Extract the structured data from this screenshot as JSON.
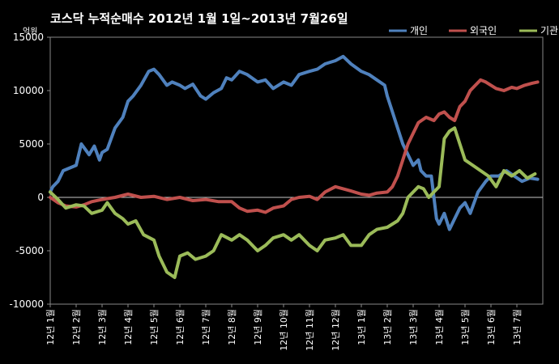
{
  "colors": {
    "background": "#000000",
    "plot_border": "#888888",
    "zero_line": "#c8c8c8"
  },
  "chart_data": {
    "type": "line",
    "title": "코스닥 누적순매수 2012년 1월 1일~2013년 7월26일",
    "unit_label": "억원",
    "ylim": [
      -10000,
      15000
    ],
    "y_ticks": [
      -10000,
      -5000,
      0,
      5000,
      10000,
      15000
    ],
    "y_tick_labels": [
      "-10000",
      "-5000",
      "0",
      "5000",
      "10000",
      "15000"
    ],
    "xlim": [
      0,
      19
    ],
    "x_tick_positions": [
      0,
      1,
      2,
      3,
      4,
      5,
      6,
      7,
      8,
      9,
      10,
      11,
      12,
      13,
      14,
      15,
      16,
      17,
      18
    ],
    "x_tick_labels": [
      "12년 1월",
      "12년 2월",
      "12년 3월",
      "12년 4월",
      "12년 5월",
      "12년 6월",
      "12년 7월",
      "12년 8월",
      "12년 9월",
      "12년 10월",
      "12년 11월",
      "12년 12월",
      "13년 1월",
      "13년 2월",
      "13년 3월",
      "13년 4월",
      "13년 5월",
      "13년 6월",
      "13년 7월"
    ],
    "grid": false,
    "legend_position": "top-right",
    "series": [
      {
        "name": "개인",
        "color": "#4f81bd",
        "x": [
          0,
          0.1,
          0.3,
          0.5,
          0.8,
          1.0,
          1.2,
          1.35,
          1.5,
          1.7,
          1.9,
          2.0,
          2.2,
          2.5,
          2.8,
          3.0,
          3.2,
          3.5,
          3.8,
          4.0,
          4.2,
          4.5,
          4.7,
          5.0,
          5.2,
          5.5,
          5.8,
          6.0,
          6.3,
          6.6,
          6.8,
          7.0,
          7.3,
          7.6,
          8.0,
          8.3,
          8.6,
          9.0,
          9.3,
          9.6,
          10.0,
          10.3,
          10.6,
          11.0,
          11.3,
          11.6,
          12.0,
          12.3,
          12.6,
          12.9,
          13.0,
          13.2,
          13.4,
          13.6,
          13.8,
          14.0,
          14.2,
          14.3,
          14.5,
          14.7,
          14.9,
          15.0,
          15.2,
          15.4,
          15.6,
          15.8,
          16.0,
          16.2,
          16.5,
          16.8,
          17.0,
          17.3,
          17.6,
          17.9,
          18.2,
          18.5,
          18.8
        ],
        "y": [
          500,
          1000,
          1500,
          2500,
          2800,
          3000,
          5000,
          4500,
          4000,
          4800,
          3500,
          4200,
          4500,
          6500,
          7500,
          9000,
          9500,
          10500,
          11800,
          12000,
          11500,
          10500,
          10800,
          10500,
          10200,
          10600,
          9500,
          9200,
          9800,
          10200,
          11200,
          11000,
          11800,
          11500,
          10800,
          11000,
          10200,
          10800,
          10500,
          11500,
          11800,
          12000,
          12500,
          12800,
          13200,
          12500,
          11800,
          11500,
          11000,
          10500,
          9500,
          8000,
          6500,
          5000,
          4000,
          3000,
          3500,
          2500,
          2000,
          2000,
          -2000,
          -2500,
          -1500,
          -3000,
          -2000,
          -1000,
          -500,
          -1500,
          500,
          1500,
          2000,
          2000,
          2500,
          2000,
          1500,
          1800,
          1700
        ]
      },
      {
        "name": "외국인",
        "color": "#c0504d",
        "x": [
          0,
          0.3,
          0.6,
          1.0,
          1.3,
          1.6,
          2.0,
          2.5,
          3.0,
          3.5,
          4.0,
          4.5,
          5.0,
          5.5,
          6.0,
          6.5,
          7.0,
          7.3,
          7.6,
          8.0,
          8.3,
          8.6,
          9.0,
          9.3,
          9.6,
          10.0,
          10.3,
          10.6,
          11.0,
          11.3,
          11.6,
          12.0,
          12.3,
          12.6,
          13.0,
          13.2,
          13.4,
          13.6,
          13.8,
          14.0,
          14.2,
          14.5,
          14.8,
          15.0,
          15.2,
          15.4,
          15.6,
          15.8,
          16.0,
          16.2,
          16.4,
          16.6,
          16.8,
          17.0,
          17.2,
          17.5,
          17.8,
          18.0,
          18.3,
          18.6,
          18.8
        ],
        "y": [
          0,
          -500,
          -800,
          -900,
          -700,
          -400,
          -200,
          0,
          300,
          0,
          100,
          -200,
          0,
          -300,
          -200,
          -400,
          -400,
          -1000,
          -1300,
          -1200,
          -1400,
          -1000,
          -800,
          -200,
          0,
          100,
          -200,
          500,
          1000,
          800,
          600,
          300,
          200,
          400,
          500,
          1000,
          2000,
          3500,
          5000,
          6000,
          7000,
          7500,
          7200,
          7800,
          8000,
          7500,
          7200,
          8500,
          9000,
          10000,
          10500,
          11000,
          10800,
          10500,
          10200,
          10000,
          10300,
          10200,
          10500,
          10700,
          10800
        ]
      },
      {
        "name": "기관",
        "color": "#9bbb59",
        "x": [
          0,
          0.3,
          0.6,
          1.0,
          1.3,
          1.6,
          2.0,
          2.2,
          2.5,
          2.8,
          3.0,
          3.3,
          3.6,
          4.0,
          4.2,
          4.5,
          4.8,
          5.0,
          5.3,
          5.6,
          6.0,
          6.3,
          6.6,
          7.0,
          7.3,
          7.6,
          8.0,
          8.3,
          8.6,
          9.0,
          9.3,
          9.6,
          10.0,
          10.3,
          10.6,
          11.0,
          11.3,
          11.6,
          12.0,
          12.3,
          12.6,
          13.0,
          13.2,
          13.4,
          13.6,
          13.8,
          14.0,
          14.2,
          14.4,
          14.6,
          14.8,
          15.0,
          15.2,
          15.4,
          15.6,
          15.8,
          16.0,
          16.3,
          16.6,
          16.9,
          17.2,
          17.5,
          17.8,
          18.1,
          18.4,
          18.7
        ],
        "y": [
          500,
          -200,
          -1000,
          -700,
          -800,
          -1500,
          -1200,
          -500,
          -1500,
          -2000,
          -2500,
          -2200,
          -3500,
          -4000,
          -5500,
          -7000,
          -7500,
          -5500,
          -5200,
          -5800,
          -5500,
          -5000,
          -3500,
          -4000,
          -3500,
          -4000,
          -5000,
          -4500,
          -3800,
          -3500,
          -4000,
          -3500,
          -4500,
          -5000,
          -4000,
          -3800,
          -3500,
          -4500,
          -4500,
          -3500,
          -3000,
          -2800,
          -2500,
          -2200,
          -1500,
          0,
          500,
          1000,
          800,
          0,
          500,
          1000,
          5500,
          6200,
          6500,
          5000,
          3500,
          3000,
          2500,
          2000,
          1000,
          2500,
          2000,
          2500,
          1800,
          2200
        ]
      }
    ]
  }
}
